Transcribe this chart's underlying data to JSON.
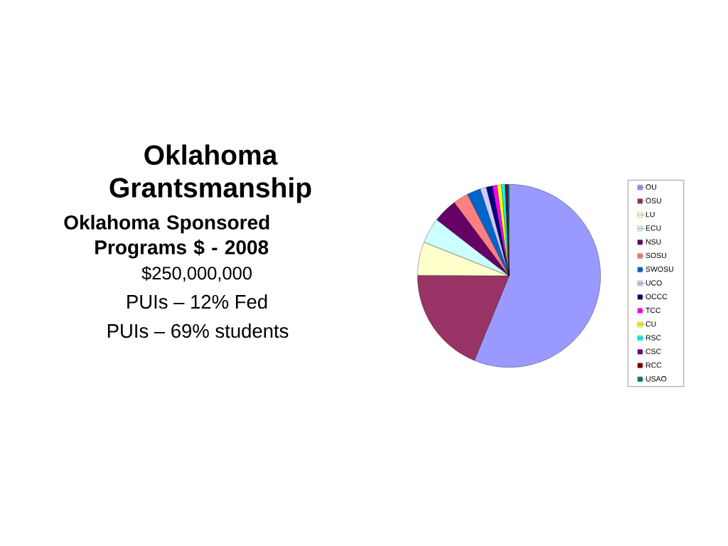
{
  "chart_data": {
    "type": "pie",
    "title": "Oklahoma Grantsmanship",
    "subtitle": "Oklahoma Sponsored Programs $ - 2008",
    "annotations": [
      "$250,000,000",
      "PUIs – 12% Fed",
      "PUIs – 69% students"
    ],
    "categories": [
      "OU",
      "OSU",
      "LU",
      "ECU",
      "NSU",
      "SOSU",
      "SWOSU",
      "UCO",
      "OCCC",
      "TCC",
      "CU",
      "RSC",
      "CSC",
      "RCC",
      "USAO"
    ],
    "values": [
      56.2,
      18.9,
      5.9,
      4.5,
      4.3,
      2.7,
      2.4,
      1.1,
      1.1,
      0.8,
      0.8,
      0.6,
      0.2,
      0.3,
      0.2
    ],
    "colors": [
      "#9999ff",
      "#993366",
      "#ffffcc",
      "#ccffff",
      "#660066",
      "#ff8080",
      "#0066cc",
      "#ccccff",
      "#000080",
      "#ff00ff",
      "#ffff00",
      "#00ffff",
      "#800080",
      "#800000",
      "#008080"
    ],
    "legend": "right"
  }
}
